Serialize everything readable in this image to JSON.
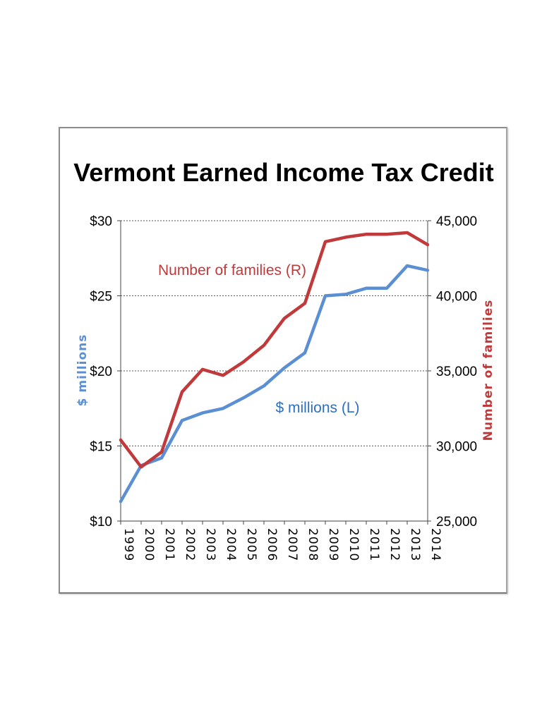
{
  "chart_data": {
    "type": "line",
    "title": "Vermont Earned Income Tax Credit",
    "x": [
      "1999",
      "2000",
      "2001",
      "2002",
      "2003",
      "2004",
      "2005",
      "2006",
      "2007",
      "2008",
      "2009",
      "2010",
      "2011",
      "2012",
      "2013",
      "2014"
    ],
    "y_left": {
      "label": "$ millions",
      "min": 10,
      "max": 30,
      "ticks": [
        "$10",
        "$15",
        "$20",
        "$25",
        "$30"
      ]
    },
    "y_right": {
      "label": "Number of families",
      "min": 25000,
      "max": 45000,
      "ticks": [
        "25,000",
        "30,000",
        "35,000",
        "40,000",
        "45,000"
      ]
    },
    "grid": true,
    "series": [
      {
        "name": "$ millions (L)",
        "axis": "left",
        "color": "#5b8fd4",
        "values": [
          11.3,
          13.7,
          14.2,
          16.7,
          17.2,
          17.5,
          18.2,
          19.0,
          20.2,
          21.2,
          25.0,
          25.1,
          25.5,
          25.5,
          27.0,
          26.7
        ]
      },
      {
        "name": "Number of families (R)",
        "axis": "right",
        "color": "#c0393b",
        "values": [
          30400,
          28600,
          29600,
          33600,
          35100,
          34700,
          35600,
          36700,
          38500,
          39500,
          43600,
          43900,
          44100,
          44100,
          44200,
          43400
        ]
      }
    ]
  }
}
